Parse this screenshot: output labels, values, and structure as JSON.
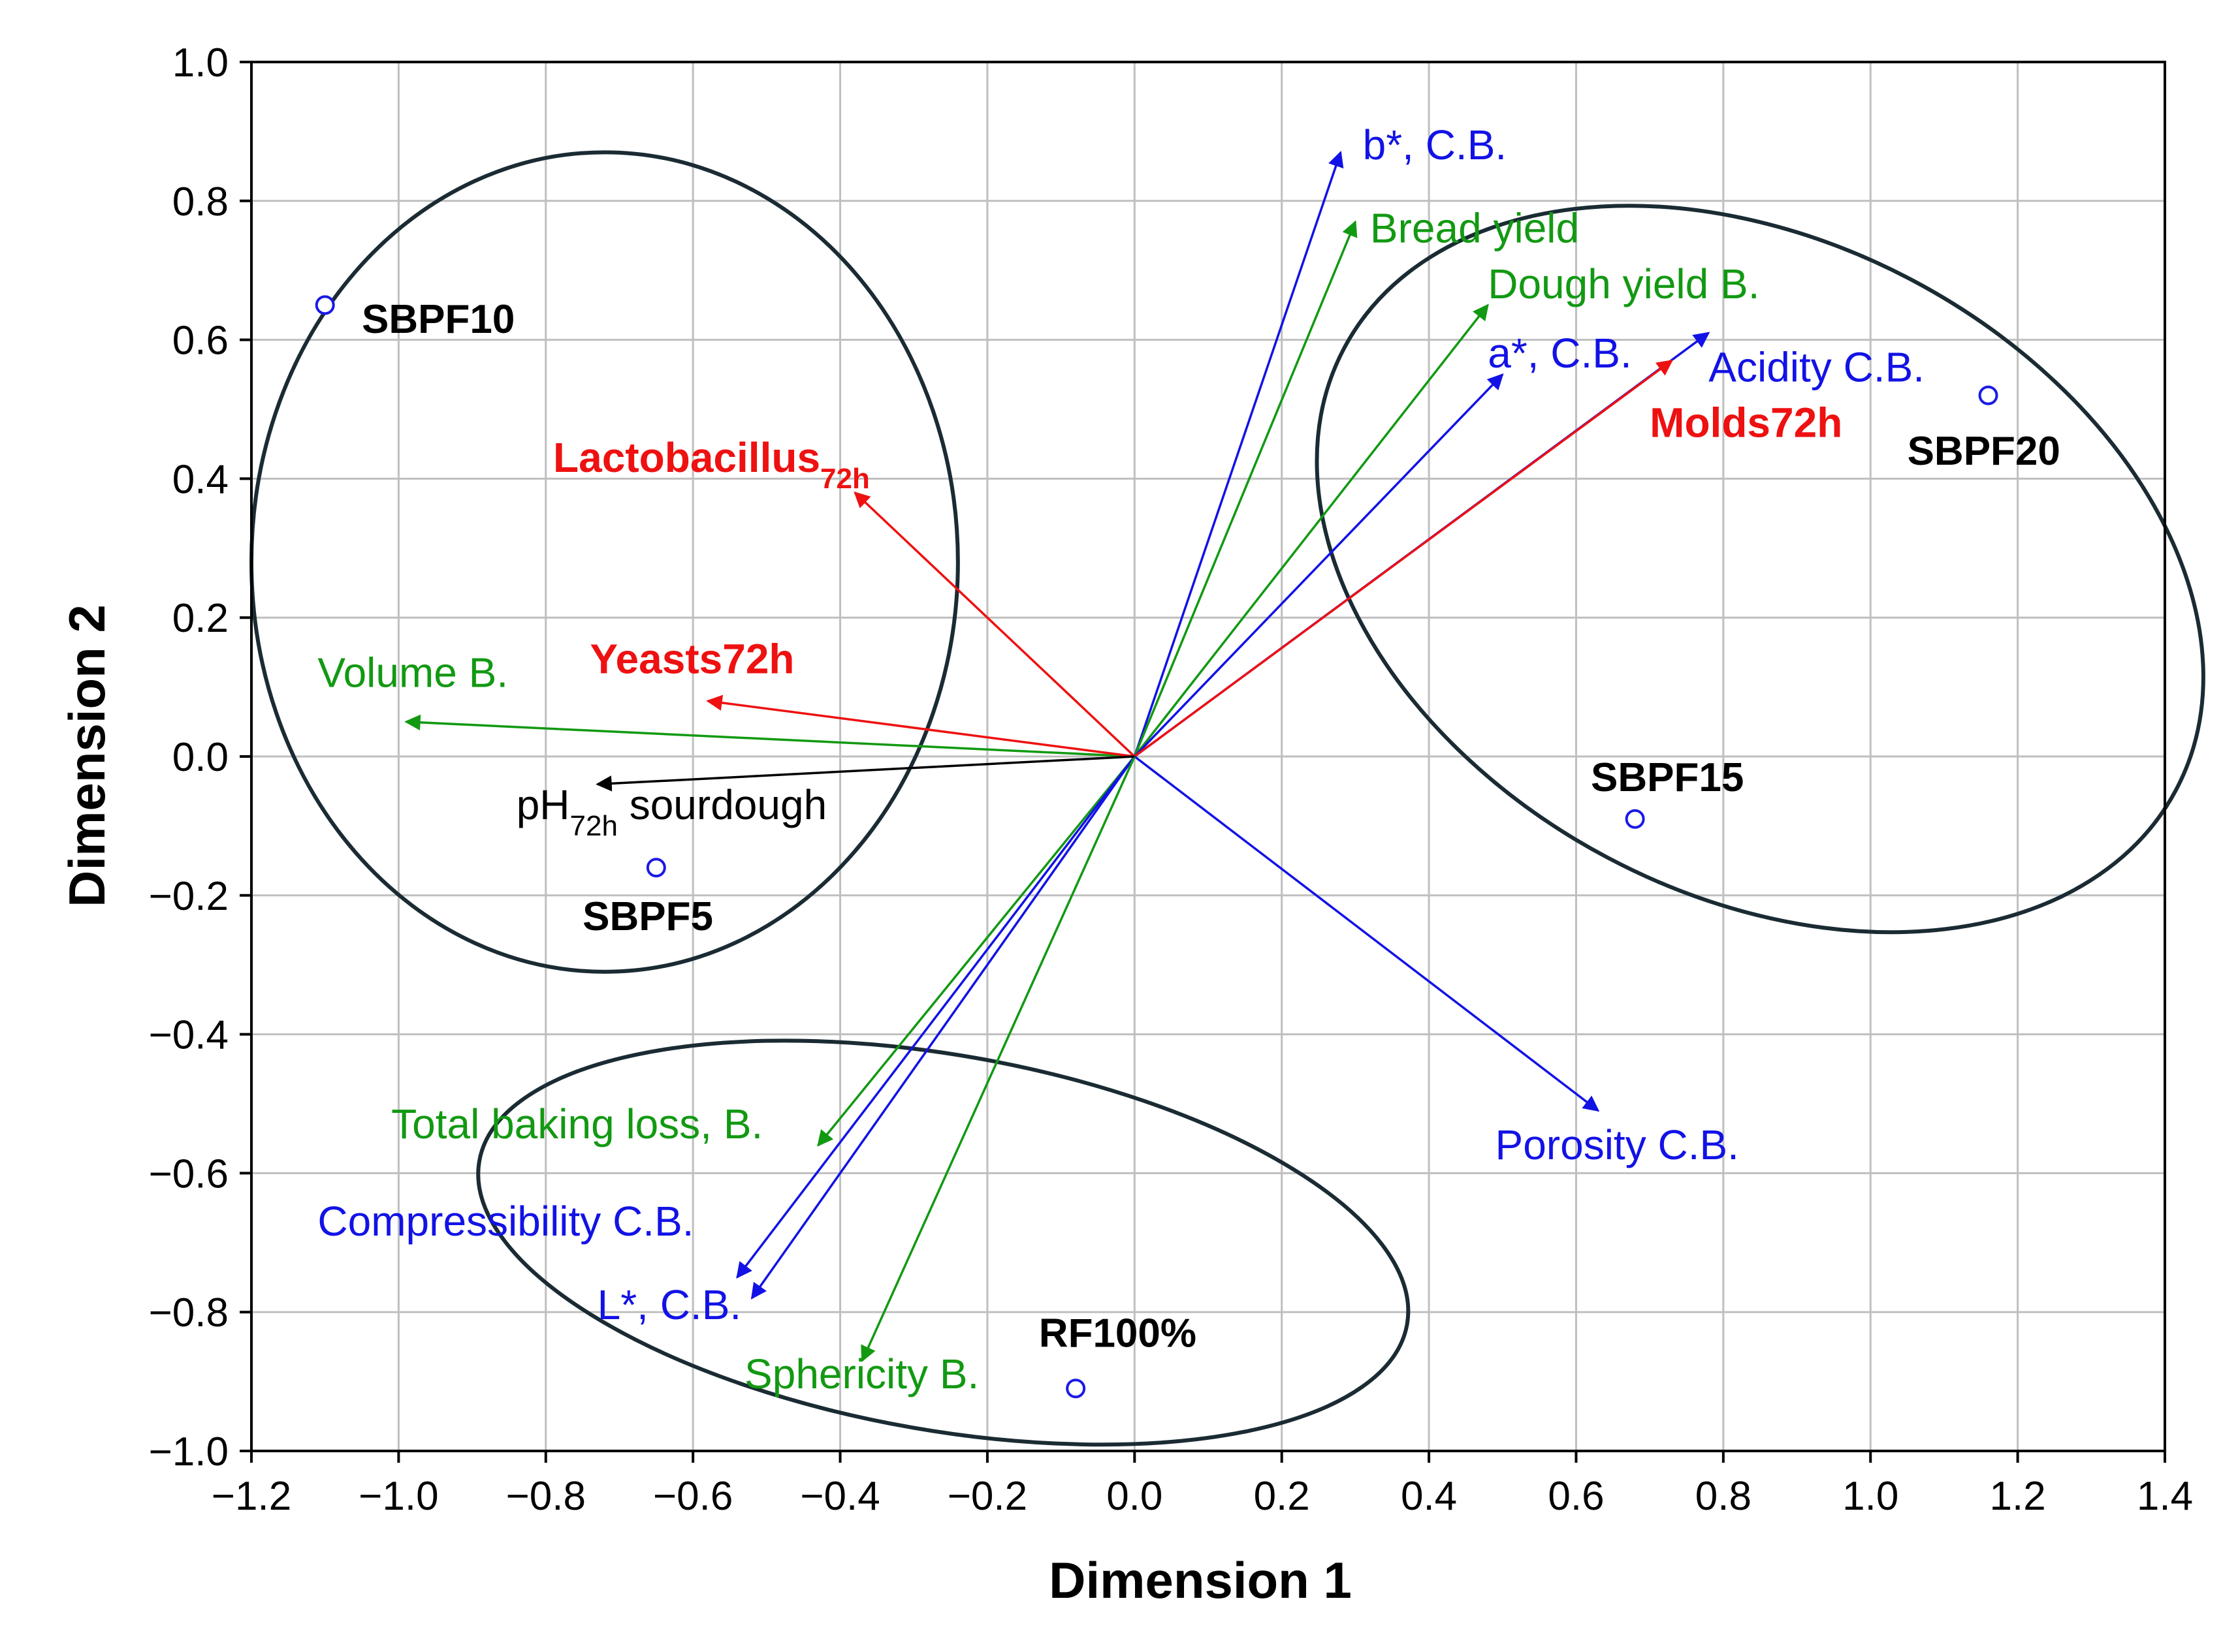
{
  "chart_data": {
    "type": "biplot",
    "title": "",
    "xlabel": "Dimension 1",
    "ylabel": "Dimension 2",
    "xlim": [
      -1.2,
      1.4
    ],
    "ylim": [
      -1.0,
      1.0
    ],
    "grid": true,
    "xticks": [
      "−1.2",
      "−1.0",
      "−0.8",
      "−0.6",
      "−0.4",
      "−0.2",
      "0.0",
      "0.2",
      "0.4",
      "0.6",
      "0.8",
      "1.0",
      "1.2",
      "1.4"
    ],
    "yticks": [
      "1.0",
      "0.8",
      "0.6",
      "0.4",
      "0.2",
      "0.0",
      "−0.2",
      "−0.4",
      "−0.6",
      "−0.8",
      "−1.0"
    ],
    "xtick_values": [
      -1.2,
      -1.0,
      -0.8,
      -0.6,
      -0.4,
      -0.2,
      0.0,
      0.2,
      0.4,
      0.6,
      0.8,
      1.0,
      1.2,
      1.4
    ],
    "ytick_values": [
      1.0,
      0.8,
      0.6,
      0.4,
      0.2,
      0.0,
      -0.2,
      -0.4,
      -0.6,
      -0.8,
      -1.0
    ],
    "colors": {
      "green": "#129912",
      "blue": "#1212e6",
      "red": "#ee1111",
      "black": "#000000",
      "ellipse": "#1a2b33",
      "point": "#1a1ae6"
    },
    "vectors": [
      {
        "label": "b*, C.B.",
        "x": 0.28,
        "y": 0.87,
        "color": "blue",
        "bold": false,
        "label_at": [
          0.31,
          0.86
        ]
      },
      {
        "label": "Bread yield",
        "x": 0.3,
        "y": 0.77,
        "color": "green",
        "bold": false,
        "label_at": [
          0.32,
          0.74
        ]
      },
      {
        "label": "Dough yield B.",
        "x": 0.48,
        "y": 0.65,
        "color": "green",
        "bold": false,
        "label_at": [
          0.48,
          0.66
        ]
      },
      {
        "label": "a*, C.B.",
        "x": 0.5,
        "y": 0.55,
        "color": "blue",
        "bold": false,
        "label_at": [
          0.48,
          0.56
        ]
      },
      {
        "label": "Acidity C.B.",
        "x": 0.78,
        "y": 0.61,
        "color": "blue",
        "bold": false,
        "label_at": [
          0.78,
          0.54
        ]
      },
      {
        "label": "Molds72h",
        "x": 0.73,
        "y": 0.57,
        "color": "red",
        "bold": true,
        "label_at": [
          0.7,
          0.46
        ]
      },
      {
        "label": "Porosity C.B.",
        "x": 0.63,
        "y": -0.51,
        "color": "blue",
        "bold": false,
        "label_at": [
          0.49,
          -0.58
        ]
      },
      {
        "label": "Total baking loss, B.",
        "x": -0.43,
        "y": -0.56,
        "color": "green",
        "bold": false,
        "label_at": [
          -1.01,
          -0.55
        ]
      },
      {
        "label": "Compressibility C.B.",
        "x": -0.54,
        "y": -0.75,
        "color": "blue",
        "bold": false,
        "label_at": [
          -1.11,
          -0.69
        ]
      },
      {
        "label": "L*, C.B.",
        "x": -0.52,
        "y": -0.78,
        "color": "blue",
        "bold": false,
        "label_at": [
          -0.73,
          -0.81
        ]
      },
      {
        "label": "Sphericity B.",
        "x": -0.37,
        "y": -0.87,
        "color": "green",
        "bold": false,
        "label_at": [
          -0.53,
          -0.91
        ]
      },
      {
        "label": "Volume B.",
        "x": -0.99,
        "y": 0.05,
        "color": "green",
        "bold": false,
        "label_at": [
          -1.11,
          0.1
        ]
      },
      {
        "label": "Yeasts72h",
        "x": -0.58,
        "y": 0.08,
        "color": "red",
        "bold": true,
        "label_at": [
          -0.74,
          0.12
        ]
      },
      {
        "label": "Lactobacillus",
        "sub": "72h",
        "x": -0.38,
        "y": 0.38,
        "color": "red",
        "bold": true,
        "label_at": [
          -0.79,
          0.41
        ]
      },
      {
        "label": "pH",
        "sub": "72h",
        "suffix": " sourdough",
        "x": -0.73,
        "y": -0.04,
        "color": "black",
        "bold": false,
        "label_at": [
          -0.84,
          -0.09
        ]
      }
    ],
    "points": [
      {
        "label": "SBPF10",
        "x": -1.1,
        "y": 0.65,
        "label_at": [
          -1.05,
          0.61
        ]
      },
      {
        "label": "SBPF20",
        "x": 1.16,
        "y": 0.52,
        "label_at": [
          1.05,
          0.42
        ]
      },
      {
        "label": "SBPF15",
        "x": 0.68,
        "y": -0.09,
        "label_at": [
          0.62,
          -0.05
        ]
      },
      {
        "label": "SBPF5",
        "x": -0.65,
        "y": -0.16,
        "label_at": [
          -0.75,
          -0.25
        ]
      },
      {
        "label": "RF100%",
        "x": -0.08,
        "y": -0.91,
        "label_at": [
          -0.13,
          -0.85
        ]
      }
    ],
    "ellipses": [
      {
        "name": "left-cluster",
        "cx": -0.72,
        "cy": 0.28,
        "rx": 0.48,
        "ry": 0.59,
        "rotate": 0
      },
      {
        "name": "right-cluster",
        "cx": 0.85,
        "cy": 0.27,
        "rx": 0.64,
        "ry": 0.47,
        "rotate": 28
      },
      {
        "name": "bottom-cluster",
        "cx": -0.26,
        "cy": -0.7,
        "rx": 0.64,
        "ry": 0.27,
        "rotate": 10
      }
    ]
  }
}
